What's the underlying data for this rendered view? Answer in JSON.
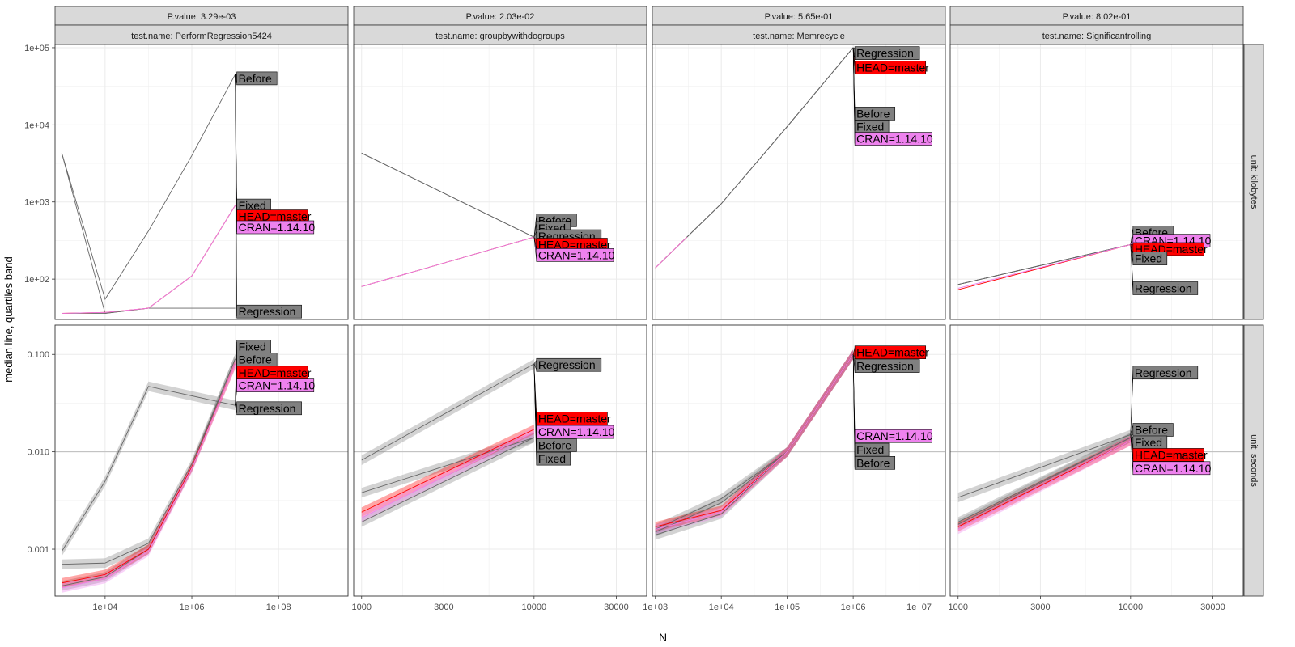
{
  "figure": {
    "xlabel": "N",
    "ylabel": "median line, quartiles band"
  },
  "row_strips": [
    "unit: kilobytes",
    "unit: seconds"
  ],
  "colors": {
    "Before": "#808080",
    "Fixed": "#808080",
    "Regression": "#808080",
    "HEAD=master": "#ff0000",
    "CRAN=1.14.10": "#ee82ee"
  },
  "chart_data": [
    {
      "type": "line",
      "p_value": "P.value: 3.29e-03",
      "test_name": "test.name: PerformRegression5424",
      "xscale": "log",
      "x_ticks": [
        "1e+04",
        "1e+06",
        "1e+08"
      ],
      "x_tick_values": [
        10000,
        1000000,
        100000000
      ],
      "xlim": [
        700,
        4000000000
      ],
      "kilobytes": {
        "ylim": [
          30,
          110000
        ],
        "series": [
          {
            "name": "Before",
            "x": [
              1000,
              10000,
              100000,
              1000000,
              10000000
            ],
            "y": [
              4300,
              55,
              420,
              4000,
              45000
            ]
          },
          {
            "name": "Fixed",
            "x": [
              1000,
              10000,
              100000,
              1000000,
              10000000
            ],
            "y": [
              4300,
              36,
              42,
              110,
              900
            ]
          },
          {
            "name": "Regression",
            "x": [
              1000,
              10000,
              100000,
              10000000
            ],
            "y": [
              36,
              36,
              42,
              42
            ]
          },
          {
            "name": "HEAD=master",
            "x": [
              1000,
              10000,
              100000,
              1000000,
              10000000
            ],
            "y": [
              36,
              37,
              42,
              110,
              900
            ]
          },
          {
            "name": "CRAN=1.14.10",
            "x": [
              1000,
              10000,
              100000,
              1000000,
              10000000
            ],
            "y": [
              36,
              37,
              42,
              110,
              900
            ]
          }
        ],
        "labels": [
          {
            "text": "Before",
            "y": 40000,
            "fill": "#808080"
          },
          {
            "text": "Fixed",
            "y": 900,
            "fill": "#808080"
          },
          {
            "text": "HEAD=master",
            "y": 650,
            "fill": "#ff0000"
          },
          {
            "text": "CRAN=1.14.10",
            "y": 470,
            "fill": "#ee82ee"
          },
          {
            "text": "Regression",
            "y": 38,
            "fill": "#808080"
          }
        ]
      },
      "seconds": {
        "ylim": [
          0.00033,
          0.2
        ],
        "series": [
          {
            "name": "Regression",
            "x": [
              1000,
              10000,
              100000,
              10000000
            ],
            "y": [
              0.00095,
              0.005,
              0.047,
              0.03
            ]
          },
          {
            "name": "Before",
            "x": [
              1000,
              10000,
              100000,
              1000000,
              10000000
            ],
            "y": [
              0.0007,
              0.00072,
              0.00115,
              0.0075,
              0.09
            ]
          },
          {
            "name": "Fixed",
            "x": [
              1000,
              10000,
              100000,
              1000000,
              10000000
            ],
            "y": [
              0.00042,
              0.00052,
              0.001,
              0.007,
              0.09
            ]
          },
          {
            "name": "HEAD=master",
            "x": [
              1000,
              10000,
              100000,
              1000000,
              10000000
            ],
            "y": [
              0.00045,
              0.00055,
              0.001,
              0.007,
              0.08
            ]
          },
          {
            "name": "CRAN=1.14.10",
            "x": [
              1000,
              10000,
              100000,
              1000000,
              10000000
            ],
            "y": [
              0.0004,
              0.0005,
              0.00095,
              0.0068,
              0.08
            ]
          }
        ],
        "labels": [
          {
            "text": "Fixed",
            "y": 0.12,
            "fill": "#808080"
          },
          {
            "text": "Before",
            "y": 0.089,
            "fill": "#808080"
          },
          {
            "text": "HEAD=master",
            "y": 0.065,
            "fill": "#ff0000"
          },
          {
            "text": "CRAN=1.14.10",
            "y": 0.048,
            "fill": "#ee82ee"
          },
          {
            "text": "Regression",
            "y": 0.028,
            "fill": "#808080"
          }
        ]
      }
    },
    {
      "type": "line",
      "p_value": "P.value: 2.03e-02",
      "test_name": "test.name: groupbywithdogroups",
      "xscale": "log",
      "x_ticks": [
        "1000",
        "3000",
        "10000",
        "30000"
      ],
      "x_tick_values": [
        1000,
        3000,
        10000,
        30000
      ],
      "xlim": [
        900,
        45000
      ],
      "kilobytes": {
        "ylim": [
          30,
          110000
        ],
        "series": [
          {
            "name": "Before",
            "x": [
              1000,
              10000
            ],
            "y": [
              4300,
              350
            ]
          },
          {
            "name": "Fixed",
            "x": [
              1000,
              10000
            ],
            "y": [
              4300,
              350
            ]
          },
          {
            "name": "Regression",
            "x": [
              1000,
              10000
            ],
            "y": [
              80,
              350
            ]
          },
          {
            "name": "HEAD=master",
            "x": [
              1000,
              10000
            ],
            "y": [
              80,
              350
            ]
          },
          {
            "name": "CRAN=1.14.10",
            "x": [
              1000,
              10000
            ],
            "y": [
              80,
              350
            ]
          }
        ],
        "labels": [
          {
            "text": "Before",
            "y": 580,
            "fill": "#808080"
          },
          {
            "text": "Fixed",
            "y": 460,
            "fill": "#808080"
          },
          {
            "text": "Regression",
            "y": 360,
            "fill": "#808080"
          },
          {
            "text": "HEAD=master",
            "y": 280,
            "fill": "#ff0000"
          },
          {
            "text": "CRAN=1.14.10",
            "y": 205,
            "fill": "#ee82ee"
          }
        ]
      },
      "seconds": {
        "ylim": [
          0.00033,
          0.2
        ],
        "series": [
          {
            "name": "Regression",
            "x": [
              1000,
              10000
            ],
            "y": [
              0.0082,
              0.08
            ]
          },
          {
            "name": "Before",
            "x": [
              1000,
              10000
            ],
            "y": [
              0.0038,
              0.014
            ]
          },
          {
            "name": "Fixed",
            "x": [
              1000,
              10000
            ],
            "y": [
              0.0019,
              0.014
            ]
          },
          {
            "name": "HEAD=master",
            "x": [
              1000,
              10000
            ],
            "y": [
              0.0024,
              0.017
            ]
          },
          {
            "name": "CRAN=1.14.10",
            "x": [
              1000,
              10000
            ],
            "y": [
              0.0021,
              0.016
            ]
          }
        ],
        "labels": [
          {
            "text": "Regression",
            "y": 0.078,
            "fill": "#808080"
          },
          {
            "text": "HEAD=master",
            "y": 0.022,
            "fill": "#ff0000"
          },
          {
            "text": "CRAN=1.14.10",
            "y": 0.016,
            "fill": "#ee82ee"
          },
          {
            "text": "Before",
            "y": 0.0117,
            "fill": "#808080"
          },
          {
            "text": "Fixed",
            "y": 0.0085,
            "fill": "#808080"
          }
        ]
      }
    },
    {
      "type": "line",
      "p_value": "P.value: 5.65e-01",
      "test_name": "test.name: Memrecycle",
      "xscale": "log",
      "x_ticks": [
        "1e+03",
        "1e+04",
        "1e+05",
        "1e+06",
        "1e+07"
      ],
      "x_tick_values": [
        1000,
        10000,
        100000,
        1000000,
        10000000
      ],
      "xlim": [
        900,
        25000000
      ],
      "kilobytes": {
        "ylim": [
          30,
          110000
        ],
        "series": [
          {
            "name": "Before",
            "x": [
              1000,
              10000,
              100000,
              1000000
            ],
            "y": [
              140,
              950,
              9500,
              100000
            ]
          },
          {
            "name": "Fixed",
            "x": [
              1000,
              10000,
              100000,
              1000000
            ],
            "y": [
              140,
              950,
              9500,
              100000
            ]
          },
          {
            "name": "Regression",
            "x": [
              1000,
              10000,
              100000,
              1000000
            ],
            "y": [
              140,
              950,
              9500,
              100000
            ]
          },
          {
            "name": "HEAD=master",
            "x": [
              1000,
              3000
            ],
            "y": [
              140,
              350
            ]
          },
          {
            "name": "CRAN=1.14.10",
            "x": [
              1000,
              3000
            ],
            "y": [
              140,
              350
            ]
          }
        ],
        "labels": [
          {
            "text": "Regression",
            "y": 85000,
            "fill": "#808080"
          },
          {
            "text": "HEAD=master",
            "y": 55000,
            "fill": "#ff0000"
          },
          {
            "text": "Before",
            "y": 14000,
            "fill": "#808080"
          },
          {
            "text": "Fixed",
            "y": 9500,
            "fill": "#808080"
          },
          {
            "text": "CRAN=1.14.10",
            "y": 6600,
            "fill": "#ee82ee"
          }
        ]
      },
      "seconds": {
        "ylim": [
          0.00033,
          0.2
        ],
        "series": [
          {
            "name": "Before",
            "x": [
              1000,
              10000,
              100000,
              1000000
            ],
            "y": [
              0.0015,
              0.003,
              0.01,
              0.1
            ]
          },
          {
            "name": "Fixed",
            "x": [
              1000,
              10000,
              100000,
              1000000
            ],
            "y": [
              0.0014,
              0.0023,
              0.01,
              0.1
            ]
          },
          {
            "name": "Regression",
            "x": [
              1000,
              10000,
              100000,
              1000000
            ],
            "y": [
              0.0016,
              0.0033,
              0.01,
              0.1
            ]
          },
          {
            "name": "HEAD=master",
            "x": [
              1000,
              10000,
              100000,
              1000000
            ],
            "y": [
              0.0017,
              0.0025,
              0.01,
              0.1
            ]
          },
          {
            "name": "CRAN=1.14.10",
            "x": [
              1000,
              10000,
              100000,
              1000000
            ],
            "y": [
              0.0016,
              0.0024,
              0.01,
              0.1
            ]
          }
        ],
        "labels": [
          {
            "text": "HEAD=master",
            "y": 0.105,
            "fill": "#ff0000"
          },
          {
            "text": "Regression",
            "y": 0.076,
            "fill": "#808080"
          },
          {
            "text": "CRAN=1.14.10",
            "y": 0.0145,
            "fill": "#ee82ee"
          },
          {
            "text": "Fixed",
            "y": 0.0105,
            "fill": "#808080"
          },
          {
            "text": "Before",
            "y": 0.0077,
            "fill": "#808080"
          }
        ]
      }
    },
    {
      "type": "line",
      "p_value": "P.value: 8.02e-01",
      "test_name": "test.name: Significantrolling",
      "xscale": "log",
      "x_ticks": [
        "1000",
        "3000",
        "10000",
        "30000"
      ],
      "x_tick_values": [
        1000,
        3000,
        10000,
        30000
      ],
      "xlim": [
        900,
        45000
      ],
      "kilobytes": {
        "ylim": [
          30,
          110000
        ],
        "series": [
          {
            "name": "Before",
            "x": [
              1000,
              10000
            ],
            "y": [
              85,
              280
            ]
          },
          {
            "name": "Fixed",
            "x": [
              1000,
              10000
            ],
            "y": [
              85,
              280
            ]
          },
          {
            "name": "Regression",
            "x": [
              1000,
              10000
            ],
            "y": [
              85,
              280
            ]
          },
          {
            "name": "HEAD=master",
            "x": [
              1000,
              10000
            ],
            "y": [
              73,
              280
            ]
          },
          {
            "name": "CRAN=1.14.10",
            "x": [
              1000,
              10000
            ],
            "y": [
              76,
              280
            ]
          }
        ],
        "labels": [
          {
            "text": "Before",
            "y": 400,
            "fill": "#808080"
          },
          {
            "text": "CRAN=1.14.10",
            "y": 315,
            "fill": "#ee82ee"
          },
          {
            "text": "HEAD=master",
            "y": 245,
            "fill": "#ff0000"
          },
          {
            "text": "Fixed",
            "y": 185,
            "fill": "#808080"
          },
          {
            "text": "Regression",
            "y": 76,
            "fill": "#808080"
          }
        ]
      },
      "seconds": {
        "ylim": [
          0.00033,
          0.2
        ],
        "series": [
          {
            "name": "Regression",
            "x": [
              1000,
              10000
            ],
            "y": [
              0.0034,
              0.015
            ]
          },
          {
            "name": "Before",
            "x": [
              1000,
              10000
            ],
            "y": [
              0.0019,
              0.014
            ]
          },
          {
            "name": "Fixed",
            "x": [
              1000,
              10000
            ],
            "y": [
              0.0018,
              0.014
            ]
          },
          {
            "name": "HEAD=master",
            "x": [
              1000,
              10000
            ],
            "y": [
              0.0017,
              0.013
            ]
          },
          {
            "name": "CRAN=1.14.10",
            "x": [
              1000,
              10000
            ],
            "y": [
              0.0016,
              0.013
            ]
          }
        ],
        "labels": [
          {
            "text": "Regression",
            "y": 0.065,
            "fill": "#808080"
          },
          {
            "text": "Before",
            "y": 0.0168,
            "fill": "#808080"
          },
          {
            "text": "Fixed",
            "y": 0.0125,
            "fill": "#808080"
          },
          {
            "text": "HEAD=master",
            "y": 0.0093,
            "fill": "#ff0000"
          },
          {
            "text": "CRAN=1.14.10",
            "y": 0.0068,
            "fill": "#ee82ee"
          }
        ]
      }
    }
  ],
  "y_ticks": {
    "kilobytes": {
      "labels": [
        "1e+02",
        "1e+03",
        "1e+04",
        "1e+05"
      ],
      "values": [
        100,
        1000,
        10000,
        100000
      ]
    },
    "seconds": {
      "labels": [
        "0.001",
        "0.010",
        "0.100"
      ],
      "values": [
        0.001,
        0.01,
        0.1
      ]
    }
  }
}
